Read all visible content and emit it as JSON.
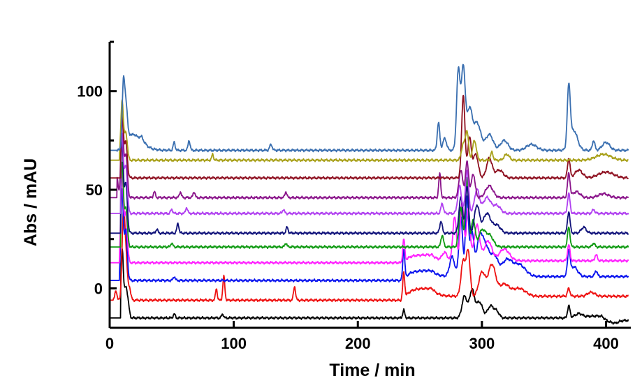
{
  "chart_data": {
    "type": "line",
    "title": "",
    "xlabel": "Time / min",
    "ylabel": "Abs / mAU",
    "xlim": [
      0,
      420
    ],
    "ylim": [
      -20,
      125
    ],
    "xticks": [
      0,
      100,
      200,
      300,
      400
    ],
    "yticks": [
      0,
      50,
      100
    ],
    "grid": false,
    "legend": "none",
    "series": [
      {
        "color": "#000000",
        "baseline": -15,
        "onset": 9,
        "peaks": [
          [
            10,
            35,
            1.0
          ],
          [
            13,
            15,
            1.2
          ],
          [
            15,
            5,
            1
          ],
          [
            52,
            2,
            0.8
          ],
          [
            91,
            2,
            0.8
          ],
          [
            237,
            4,
            0.8
          ],
          [
            286,
            11,
            2
          ],
          [
            292,
            14,
            2
          ],
          [
            298,
            8,
            2.5
          ],
          [
            307,
            6,
            2.5
          ],
          [
            312,
            3,
            2
          ],
          [
            370,
            6,
            1
          ],
          [
            378,
            2,
            3
          ],
          [
            392,
            1,
            8
          ]
        ],
        "steps": [
          [
            397,
            -3
          ],
          [
            408,
            2
          ]
        ]
      },
      {
        "color": "#ee1111",
        "baseline": -6,
        "onset": 3,
        "peaks": [
          [
            5,
            5,
            0.8
          ],
          [
            11,
            40,
            1.1
          ],
          [
            13,
            22,
            1.2
          ],
          [
            16,
            6,
            1
          ],
          [
            86,
            6,
            0.7
          ],
          [
            92,
            12,
            0.8
          ],
          [
            149,
            7,
            0.8
          ],
          [
            237,
            14,
            0.8
          ],
          [
            285,
            18,
            1.8
          ],
          [
            289,
            22,
            1.5
          ],
          [
            300,
            12,
            2.5
          ],
          [
            308,
            16,
            3
          ],
          [
            318,
            6,
            4
          ],
          [
            330,
            4,
            5
          ],
          [
            370,
            4,
            1
          ],
          [
            388,
            2,
            3
          ]
        ],
        "steps": [
          [
            237,
            6
          ],
          [
            260,
            -4
          ]
        ]
      },
      {
        "color": "#0a14ee",
        "baseline": 4,
        "onset": 8,
        "peaks": [
          [
            10,
            45,
            1.0
          ],
          [
            13,
            25,
            1.2
          ],
          [
            52,
            2,
            0.8
          ],
          [
            237,
            16,
            0.8
          ],
          [
            276,
            10,
            2
          ],
          [
            283,
            30,
            1.5
          ],
          [
            288,
            40,
            1.2
          ],
          [
            292,
            22,
            1.5
          ],
          [
            298,
            18,
            2.5
          ],
          [
            303,
            14,
            3
          ],
          [
            310,
            10,
            3
          ],
          [
            320,
            8,
            4
          ],
          [
            330,
            6,
            5
          ],
          [
            370,
            12,
            1
          ],
          [
            374,
            5,
            3
          ],
          [
            392,
            3,
            1
          ]
        ],
        "steps": [
          [
            237,
            5
          ],
          [
            260,
            -3
          ]
        ]
      },
      {
        "color": "#ff22ff",
        "baseline": 13,
        "onset": 8,
        "peaks": [
          [
            10,
            45,
            1.0
          ],
          [
            13,
            25,
            1.2
          ],
          [
            237,
            12,
            0.8
          ],
          [
            270,
            4,
            2
          ],
          [
            278,
            22,
            1.5
          ],
          [
            284,
            30,
            1.4
          ],
          [
            289,
            26,
            1.5
          ],
          [
            296,
            18,
            2.2
          ],
          [
            305,
            10,
            3
          ],
          [
            318,
            6,
            4
          ],
          [
            370,
            8,
            1
          ],
          [
            392,
            3,
            1
          ]
        ],
        "steps": [
          [
            237,
            4
          ],
          [
            260,
            -3
          ]
        ]
      },
      {
        "color": "#0f9a12",
        "baseline": 21,
        "onset": 9,
        "peaks": [
          [
            10,
            42,
            1.0
          ],
          [
            13,
            20,
            1.2
          ],
          [
            50,
            2,
            0.8
          ],
          [
            142,
            2,
            0.8
          ],
          [
            268,
            6,
            1
          ],
          [
            283,
            20,
            1.5
          ],
          [
            288,
            35,
            1.2
          ],
          [
            293,
            14,
            1.5
          ],
          [
            300,
            8,
            2.5
          ],
          [
            306,
            6,
            3
          ],
          [
            370,
            10,
            1
          ],
          [
            390,
            2,
            1
          ]
        ]
      },
      {
        "color": "#10127a",
        "baseline": 28,
        "onset": 9,
        "peaks": [
          [
            10,
            45,
            1.0
          ],
          [
            13,
            25,
            1.2
          ],
          [
            38,
            2,
            0.8
          ],
          [
            55,
            5,
            0.8
          ],
          [
            143,
            3,
            0.8
          ],
          [
            267,
            6,
            1
          ],
          [
            283,
            18,
            1.5
          ],
          [
            288,
            24,
            1.2
          ],
          [
            296,
            14,
            2
          ],
          [
            304,
            10,
            3
          ],
          [
            312,
            4,
            3
          ],
          [
            370,
            11,
            1
          ],
          [
            382,
            3,
            2
          ]
        ]
      },
      {
        "color": "#b040f0",
        "baseline": 38,
        "onset": 9,
        "peaks": [
          [
            10,
            40,
            1.0
          ],
          [
            13,
            24,
            1.2
          ],
          [
            50,
            2,
            0.8
          ],
          [
            62,
            3,
            0.8
          ],
          [
            140,
            2,
            0.8
          ],
          [
            268,
            5,
            1
          ],
          [
            282,
            14,
            1.5
          ],
          [
            288,
            22,
            1.3
          ],
          [
            296,
            12,
            2
          ],
          [
            304,
            8,
            3
          ],
          [
            312,
            4,
            3
          ],
          [
            370,
            10,
            1
          ],
          [
            390,
            2,
            1
          ]
        ]
      },
      {
        "color": "#8a148a",
        "baseline": 46,
        "onset": 6,
        "peaks": [
          [
            6,
            10,
            0.8
          ],
          [
            10,
            40,
            1.0
          ],
          [
            13,
            22,
            1.2
          ],
          [
            36,
            3,
            0.8
          ],
          [
            57,
            3,
            0.8
          ],
          [
            68,
            3,
            0.8
          ],
          [
            142,
            3,
            0.8
          ],
          [
            266,
            12,
            0.8
          ],
          [
            283,
            14,
            1.5
          ],
          [
            288,
            18,
            1.3
          ],
          [
            293,
            12,
            1.5
          ],
          [
            306,
            6,
            3
          ],
          [
            370,
            12,
            1
          ],
          [
            376,
            3,
            3
          ],
          [
            398,
            2,
            4
          ]
        ]
      },
      {
        "color": "#8e1020",
        "baseline": 56,
        "onset": 9,
        "peaks": [
          [
            10,
            35,
            1.0
          ],
          [
            13,
            18,
            1.2
          ],
          [
            285,
            42,
            1.3
          ],
          [
            290,
            20,
            1.5
          ],
          [
            295,
            12,
            2
          ],
          [
            306,
            10,
            2.2
          ],
          [
            314,
            4,
            3
          ],
          [
            370,
            10,
            1
          ],
          [
            378,
            4,
            3
          ],
          [
            400,
            3,
            6
          ]
        ]
      },
      {
        "color": "#a8a019",
        "baseline": 65,
        "onset": 8,
        "peaks": [
          [
            10,
            30,
            1.0
          ],
          [
            13,
            14,
            1.2
          ],
          [
            83,
            3,
            0.7
          ],
          [
            285,
            8,
            1.5
          ],
          [
            288,
            14,
            1.2
          ],
          [
            294,
            10,
            1.5
          ],
          [
            308,
            4,
            1
          ],
          [
            320,
            3,
            2
          ],
          [
            398,
            3,
            6
          ]
        ]
      },
      {
        "color": "#3a6fb0",
        "baseline": 70,
        "onset": 6,
        "peaks": [
          [
            11,
            30,
            1.0
          ],
          [
            13,
            20,
            1.2
          ],
          [
            17,
            8,
            3
          ],
          [
            52,
            4,
            0.8
          ],
          [
            64,
            5,
            0.8
          ],
          [
            130,
            3,
            1
          ],
          [
            265,
            14,
            1
          ],
          [
            270,
            6,
            1.5
          ],
          [
            281,
            40,
            1.4
          ],
          [
            285,
            42,
            1.6
          ],
          [
            290,
            20,
            2
          ],
          [
            296,
            14,
            3
          ],
          [
            306,
            8,
            3
          ],
          [
            318,
            5,
            3
          ],
          [
            340,
            3,
            4
          ],
          [
            370,
            30,
            1.2
          ],
          [
            374,
            10,
            3
          ],
          [
            390,
            5,
            1
          ],
          [
            400,
            4,
            3
          ]
        ],
        "steps": [
          [
            18,
            8
          ],
          [
            26,
            -8
          ]
        ]
      }
    ]
  }
}
